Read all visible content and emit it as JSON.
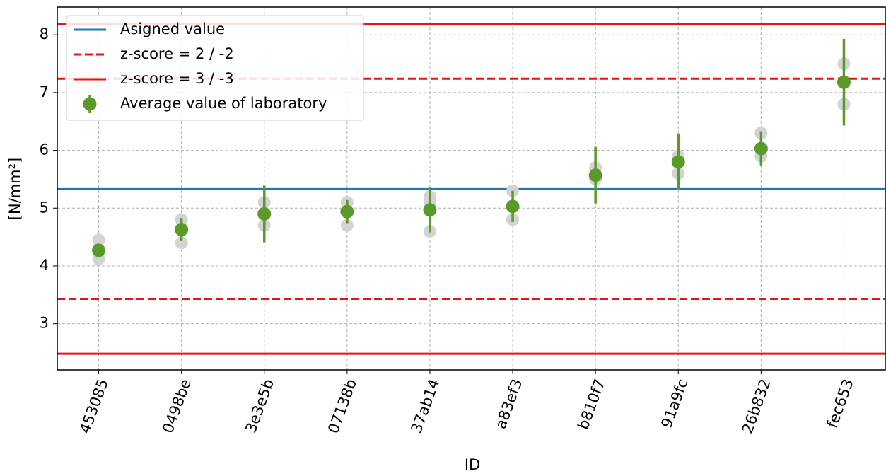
{
  "chart_data": {
    "type": "errorbar",
    "xlabel": "ID",
    "ylabel": "[N/mm²]",
    "categories": [
      "453085",
      "0498be",
      "3e3e5b",
      "07138b",
      "37ab14",
      "a83ef3",
      "b810f7",
      "91a9fc",
      "26b832",
      "fec653"
    ],
    "series": [
      {
        "name": "Average value of laboratory",
        "color": "#5a9a28",
        "values": [
          4.27,
          4.63,
          4.9,
          4.94,
          4.97,
          5.03,
          5.57,
          5.8,
          6.03,
          7.18
        ],
        "errors": [
          0.1,
          0.2,
          0.49,
          0.2,
          0.39,
          0.27,
          0.49,
          0.49,
          0.3,
          0.75
        ]
      }
    ],
    "replicates": {
      "color": "#d3d3d3",
      "values": [
        [
          4.45,
          4.12
        ],
        [
          4.8,
          4.4
        ],
        [
          5.1,
          4.7
        ],
        [
          5.1,
          4.7
        ],
        [
          5.2,
          5.1,
          4.6
        ],
        [
          5.3,
          4.8
        ],
        [
          5.7,
          5.5
        ],
        [
          5.9,
          5.6
        ],
        [
          6.3,
          5.9
        ],
        [
          7.5,
          6.8
        ]
      ]
    },
    "reference_lines": [
      {
        "name": "Asigned value",
        "color": "#1f77b4",
        "dashed": false,
        "values": [
          5.33
        ]
      },
      {
        "name": "z-score = 2 / -2",
        "color": "#ee1111",
        "dashed": true,
        "values": [
          7.24,
          3.43
        ]
      },
      {
        "name": "z-score = 3 / -3",
        "color": "#ee1111",
        "dashed": false,
        "values": [
          8.19,
          2.48
        ]
      }
    ],
    "ylim": [
      2.2,
      8.48
    ],
    "yticks": [
      3,
      4,
      5,
      6,
      7,
      8
    ],
    "grid": true,
    "legend": "upper left"
  }
}
